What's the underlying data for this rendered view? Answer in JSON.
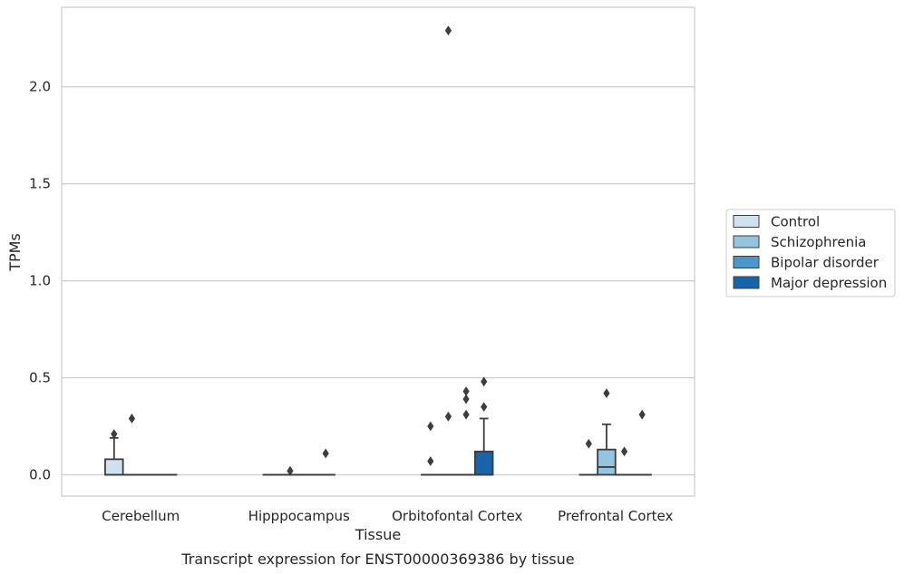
{
  "chart_data": {
    "type": "box",
    "title": "",
    "caption": "Transcript expression for ENST00000369386 by tissue",
    "xlabel": "Tissue",
    "ylabel": "TPMs",
    "ylim": [
      -0.11,
      2.41
    ],
    "yticks": [
      0.0,
      0.5,
      1.0,
      1.5,
      2.0
    ],
    "ytick_labels": [
      "0.0",
      "0.5",
      "1.0",
      "1.5",
      "2.0"
    ],
    "grid": "horizontal",
    "legend_position": "right",
    "categories": [
      "Cerebellum",
      "Hipppocampus",
      "Orbitofontal Cortex",
      "Prefrontal Cortex"
    ],
    "series": [
      {
        "name": "Control",
        "color": "#d0e1f2",
        "boxes": [
          {
            "q1": 0.0,
            "median": 0.0,
            "q3": 0.08,
            "whisker_low": 0.0,
            "whisker_high": 0.19,
            "outliers": [
              0.21
            ]
          },
          {
            "q1": 0.0,
            "median": 0.0,
            "q3": 0.0,
            "whisker_low": 0.0,
            "whisker_high": 0.0,
            "outliers": []
          },
          {
            "q1": 0.0,
            "median": 0.0,
            "q3": 0.0,
            "whisker_low": 0.0,
            "whisker_high": 0.0,
            "outliers": [
              0.25,
              0.07
            ]
          },
          {
            "q1": 0.0,
            "median": 0.0,
            "q3": 0.0,
            "whisker_low": 0.0,
            "whisker_high": 0.0,
            "outliers": [
              0.16
            ]
          }
        ]
      },
      {
        "name": "Schizophrenia",
        "color": "#94c4df",
        "boxes": [
          {
            "q1": 0.0,
            "median": 0.0,
            "q3": 0.0,
            "whisker_low": 0.0,
            "whisker_high": 0.0,
            "outliers": [
              0.29
            ]
          },
          {
            "q1": 0.0,
            "median": 0.0,
            "q3": 0.0,
            "whisker_low": 0.0,
            "whisker_high": 0.0,
            "outliers": [
              0.02
            ]
          },
          {
            "q1": 0.0,
            "median": 0.0,
            "q3": 0.0,
            "whisker_low": 0.0,
            "whisker_high": 0.0,
            "outliers": [
              2.29,
              0.3
            ]
          },
          {
            "q1": 0.0,
            "median": 0.04,
            "q3": 0.13,
            "whisker_low": 0.0,
            "whisker_high": 0.26,
            "outliers": [
              0.42
            ]
          }
        ]
      },
      {
        "name": "Bipolar disorder",
        "color": "#4a98c9",
        "boxes": [
          {
            "q1": 0.0,
            "median": 0.0,
            "q3": 0.0,
            "whisker_low": 0.0,
            "whisker_high": 0.0,
            "outliers": []
          },
          {
            "q1": 0.0,
            "median": 0.0,
            "q3": 0.0,
            "whisker_low": 0.0,
            "whisker_high": 0.0,
            "outliers": []
          },
          {
            "q1": 0.0,
            "median": 0.0,
            "q3": 0.0,
            "whisker_low": 0.0,
            "whisker_high": 0.0,
            "outliers": [
              0.43,
              0.39,
              0.31
            ]
          },
          {
            "q1": 0.0,
            "median": 0.0,
            "q3": 0.0,
            "whisker_low": 0.0,
            "whisker_high": 0.0,
            "outliers": [
              0.12
            ]
          }
        ]
      },
      {
        "name": "Major depression",
        "color": "#1764ab",
        "boxes": [
          {
            "q1": 0.0,
            "median": 0.0,
            "q3": 0.0,
            "whisker_low": 0.0,
            "whisker_high": 0.0,
            "outliers": []
          },
          {
            "q1": 0.0,
            "median": 0.0,
            "q3": 0.0,
            "whisker_low": 0.0,
            "whisker_high": 0.0,
            "outliers": [
              0.11
            ]
          },
          {
            "q1": 0.0,
            "median": 0.0,
            "q3": 0.12,
            "whisker_low": 0.0,
            "whisker_high": 0.29,
            "outliers": [
              0.48,
              0.35
            ]
          },
          {
            "q1": 0.0,
            "median": 0.0,
            "q3": 0.0,
            "whisker_low": 0.0,
            "whisker_high": 0.0,
            "outliers": [
              0.31
            ]
          }
        ]
      }
    ]
  }
}
